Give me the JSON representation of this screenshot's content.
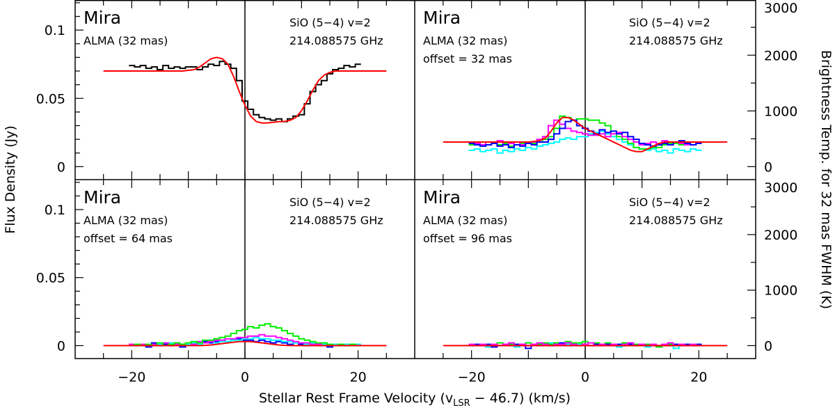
{
  "chart_data": {
    "type": "line",
    "xlabel": "Stellar Rest Frame Velocity (v",
    "xlabel_sub": "LSR",
    "xlabel_tail": " − 46.7) (km/s)",
    "ylabel": "Flux Density (Jy)",
    "ylabel_right": "Brightness Temp. for 32 mas FWHM (K)",
    "xlim": [
      -30,
      30
    ],
    "ylim": [
      -0.0095,
      0.122
    ],
    "x_ticks": [
      "-20",
      "0",
      "20"
    ],
    "x_tick_values": [
      -20,
      0,
      20
    ],
    "y_ticks": [
      "0",
      "0.05",
      "0.1"
    ],
    "y_tick_values": [
      0,
      0.05,
      0.1
    ],
    "right_ticks": [
      "0",
      "1000",
      "2000",
      "3000"
    ],
    "right_tick_values": [
      0,
      1000,
      2000,
      3000
    ],
    "jy_per_1000K": 0.0408,
    "colors": {
      "model": "#ff0000",
      "black": "#000000",
      "blue": "#0000ff",
      "green": "#00ee00",
      "magenta": "#ff00ff",
      "cyan": "#00ffff"
    },
    "obs_x_start": -20,
    "obs_x_step": 1,
    "model_x_start": -25,
    "model_x_step": 1,
    "panels": [
      {
        "star": "Mira",
        "instrument": "ALMA (32 mas)",
        "offset": "",
        "line": "SiO (5−4) v=2",
        "freq": "214.088575 GHz",
        "model": [
          0.07,
          0.07,
          0.07,
          0.07,
          0.07,
          0.07,
          0.07,
          0.07,
          0.07,
          0.07,
          0.07,
          0.07,
          0.07,
          0.07,
          0.07,
          0.0705,
          0.071,
          0.073,
          0.076,
          0.079,
          0.08,
          0.079,
          0.075,
          0.066,
          0.055,
          0.045,
          0.037,
          0.033,
          0.032,
          0.032,
          0.0325,
          0.033,
          0.033,
          0.034,
          0.036,
          0.041,
          0.048,
          0.056,
          0.063,
          0.067,
          0.069,
          0.07,
          0.07,
          0.07,
          0.07,
          0.07,
          0.07,
          0.07,
          0.07,
          0.07,
          0.07
        ],
        "series": [
          {
            "name": "black",
            "values": [
              0.074,
              0.073,
              0.074,
              0.072,
              0.073,
              0.071,
              0.074,
              0.072,
              0.073,
              0.072,
              0.073,
              0.073,
              0.071,
              0.073,
              0.075,
              0.074,
              0.077,
              0.075,
              0.072,
              0.063,
              0.048,
              0.042,
              0.038,
              0.036,
              0.035,
              0.034,
              0.035,
              0.033,
              0.035,
              0.037,
              0.038,
              0.046,
              0.055,
              0.06,
              0.063,
              0.068,
              0.071,
              0.072,
              0.074,
              0.073,
              0.075
            ]
          }
        ]
      },
      {
        "star": "Mira",
        "instrument": "ALMA (32 mas)",
        "offset": "offset = 32 mas",
        "line": "SiO (5−4) v=2",
        "freq": "214.088575 GHz",
        "model": [
          0.018,
          0.018,
          0.018,
          0.018,
          0.018,
          0.018,
          0.018,
          0.018,
          0.018,
          0.018,
          0.018,
          0.018,
          0.018,
          0.018,
          0.018,
          0.018,
          0.0185,
          0.019,
          0.021,
          0.026,
          0.032,
          0.036,
          0.036,
          0.034,
          0.031,
          0.028,
          0.026,
          0.024,
          0.022,
          0.02,
          0.018,
          0.016,
          0.014,
          0.012,
          0.011,
          0.011,
          0.013,
          0.015,
          0.017,
          0.018,
          0.018,
          0.018,
          0.018,
          0.018,
          0.018,
          0.018,
          0.018,
          0.018,
          0.018,
          0.018,
          0.018
        ],
        "series": [
          {
            "name": "cyan",
            "values": [
              0.012,
              0.013,
              0.011,
              0.012,
              0.013,
              0.01,
              0.012,
              0.011,
              0.013,
              0.012,
              0.014,
              0.013,
              0.015,
              0.016,
              0.017,
              0.018,
              0.02,
              0.021,
              0.02,
              0.022,
              0.022,
              0.024,
              0.025,
              0.026,
              0.024,
              0.022,
              0.02,
              0.018,
              0.016,
              0.014,
              0.013,
              0.012,
              0.013,
              0.011,
              0.012,
              0.01,
              0.013,
              0.012,
              0.011,
              0.013,
              0.012
            ]
          },
          {
            "name": "green",
            "values": [
              0.016,
              0.017,
              0.015,
              0.016,
              0.018,
              0.016,
              0.017,
              0.015,
              0.016,
              0.017,
              0.018,
              0.017,
              0.018,
              0.02,
              0.022,
              0.028,
              0.037,
              0.036,
              0.034,
              0.035,
              0.035,
              0.034,
              0.034,
              0.032,
              0.03,
              0.026,
              0.022,
              0.02,
              0.017,
              0.014,
              0.013,
              0.013,
              0.014,
              0.014,
              0.016,
              0.017,
              0.017,
              0.016,
              0.017,
              0.016,
              0.017
            ]
          },
          {
            "name": "magenta",
            "values": [
              0.018,
              0.017,
              0.016,
              0.018,
              0.017,
              0.019,
              0.016,
              0.017,
              0.018,
              0.016,
              0.017,
              0.018,
              0.02,
              0.022,
              0.03,
              0.034,
              0.031,
              0.028,
              0.026,
              0.025,
              0.024,
              0.023,
              0.023,
              0.024,
              0.022,
              0.024,
              0.025,
              0.022,
              0.02,
              0.018,
              0.016,
              0.017,
              0.018,
              0.017,
              0.019,
              0.016,
              0.018,
              0.017,
              0.016,
              0.018,
              0.017
            ]
          },
          {
            "name": "blue",
            "values": [
              0.017,
              0.016,
              0.015,
              0.016,
              0.017,
              0.015,
              0.016,
              0.014,
              0.016,
              0.015,
              0.017,
              0.016,
              0.018,
              0.018,
              0.02,
              0.024,
              0.028,
              0.033,
              0.034,
              0.03,
              0.028,
              0.026,
              0.024,
              0.027,
              0.025,
              0.026,
              0.024,
              0.025,
              0.022,
              0.02,
              0.017,
              0.016,
              0.015,
              0.016,
              0.017,
              0.016,
              0.018,
              0.019,
              0.017,
              0.016,
              0.017
            ]
          }
        ]
      },
      {
        "star": "Mira",
        "instrument": "ALMA (32 mas)",
        "offset": "offset = 64 mas",
        "line": "SiO (5−4) v=2",
        "freq": "214.088575 GHz",
        "model": [
          0,
          0,
          0,
          0,
          0,
          0,
          0,
          0,
          0,
          0,
          0,
          0,
          0,
          0,
          0,
          0,
          0,
          0,
          0.0002,
          0.0005,
          0.001,
          0.0015,
          0.002,
          0.0025,
          0.003,
          0.003,
          0.003,
          0.0025,
          0.002,
          0.0015,
          0.001,
          0.0005,
          0.0002,
          0,
          0,
          0,
          0,
          0,
          0,
          0,
          0,
          0,
          0,
          0,
          0,
          0,
          0,
          0,
          0,
          0,
          0
        ],
        "series": [
          {
            "name": "blue",
            "values": [
              0.001,
              0,
              0.001,
              -0.001,
              0.002,
              0,
              0.001,
              0,
              0.001,
              -0.001,
              0.001,
              0.002,
              0.001,
              0.003,
              0.002,
              0.003,
              0.004,
              0.003,
              0.004,
              0.005,
              0.004,
              0.004,
              0.003,
              0.004,
              0.003,
              0.002,
              0.003,
              0.002,
              0.001,
              0.002,
              0.001,
              0,
              0.001,
              0,
              0.001,
              -0.001,
              0.001,
              0,
              0.001,
              0,
              0.001
            ]
          },
          {
            "name": "cyan",
            "values": [
              0,
              0.001,
              0,
              0.001,
              0,
              0.001,
              0,
              0.002,
              0.001,
              0,
              0.001,
              0.002,
              0.001,
              0.002,
              0.003,
              0.002,
              0.003,
              0.003,
              0.004,
              0.004,
              0.005,
              0.005,
              0.006,
              0.005,
              0.005,
              0.004,
              0.004,
              0.003,
              0.003,
              0.002,
              0.002,
              0.001,
              0.002,
              0.001,
              0.001,
              0,
              0.001,
              0,
              0.001,
              0,
              0.001
            ]
          },
          {
            "name": "magenta",
            "values": [
              0.001,
              0,
              0.001,
              0,
              0.001,
              0,
              0.002,
              0,
              0.001,
              0.001,
              0.002,
              0.001,
              0.003,
              0.002,
              0.003,
              0.004,
              0.004,
              0.005,
              0.005,
              0.006,
              0.006,
              0.007,
              0.007,
              0.008,
              0.007,
              0.007,
              0.006,
              0.005,
              0.004,
              0.003,
              0.002,
              0.002,
              0.001,
              0.001,
              0,
              0.001,
              0,
              0.001,
              0,
              0.001,
              0
            ]
          },
          {
            "name": "green",
            "values": [
              0,
              0.001,
              0,
              0.001,
              0,
              0.002,
              0,
              0.001,
              0.002,
              0.001,
              0.002,
              0.003,
              0.002,
              0.004,
              0.004,
              0.005,
              0.006,
              0.007,
              0.009,
              0.011,
              0.012,
              0.014,
              0.013,
              0.015,
              0.016,
              0.014,
              0.013,
              0.011,
              0.009,
              0.007,
              0.005,
              0.004,
              0.003,
              0.002,
              0.002,
              0.001,
              0,
              0.001,
              0,
              0.001,
              0
            ]
          }
        ]
      },
      {
        "star": "Mira",
        "instrument": "ALMA (32 mas)",
        "offset": "offset = 96 mas",
        "line": "SiO (5−4) v=2",
        "freq": "214.088575 GHz",
        "model": [
          0,
          0,
          0,
          0,
          0,
          0,
          0,
          0,
          0,
          0,
          0,
          0,
          0,
          0,
          0,
          0,
          0,
          0,
          0,
          0,
          0,
          0,
          0,
          0,
          0,
          0,
          0,
          0,
          0,
          0,
          0,
          0,
          0,
          0,
          0,
          0,
          0,
          0,
          0,
          0,
          0,
          0,
          0,
          0,
          0,
          0,
          0,
          0,
          0,
          0,
          0
        ],
        "series": [
          {
            "name": "cyan",
            "values": [
              0,
              0.001,
              0,
              -0.001,
              0.001,
              0,
              0.001,
              0,
              -0.001,
              0.001,
              0,
              0.001,
              0,
              0.001,
              0.002,
              0.001,
              0,
              0.001,
              0,
              0.001,
              0.001,
              0,
              0.001,
              0,
              0.001,
              0,
              -0.001,
              0.001,
              0,
              0.001,
              0,
              -0.001,
              0.001,
              0,
              0.001,
              0,
              -0.002,
              0,
              0.001,
              0,
              0.001
            ]
          },
          {
            "name": "green",
            "values": [
              0.001,
              0,
              0.001,
              0,
              0.001,
              0.002,
              0,
              0.001,
              0,
              0.001,
              0.002,
              0.001,
              0.001,
              0.002,
              0.001,
              0.002,
              0.002,
              0.003,
              0.002,
              0.002,
              0.003,
              0.002,
              0.002,
              0.001,
              0.002,
              0.001,
              0.001,
              0.002,
              0,
              0.001,
              0,
              0.001,
              0,
              -0.001,
              0,
              0.001,
              0,
              0.001,
              0,
              0.001,
              0
            ]
          },
          {
            "name": "blue",
            "values": [
              0,
              0.001,
              0,
              0.001,
              -0.001,
              0,
              0.001,
              0,
              0.001,
              0,
              -0.002,
              0.001,
              0,
              0.001,
              0,
              0.001,
              0.002,
              0,
              0.001,
              0,
              0.001,
              0,
              0.001,
              0,
              0.001,
              0,
              0.001,
              0,
              0.001,
              0,
              0.001,
              0,
              0.001,
              0,
              0.001,
              0,
              0.001,
              0,
              0.001,
              0,
              0.001
            ]
          },
          {
            "name": "magenta",
            "values": [
              0.001,
              0,
              0.001,
              0,
              0.001,
              0,
              0.001,
              0.002,
              0,
              0.001,
              0,
              0.001,
              0.002,
              0.001,
              0,
              0.001,
              0.001,
              0.002,
              0.001,
              0,
              0.001,
              0.002,
              0,
              0.001,
              0,
              0.001,
              0,
              0.001,
              0.002,
              0,
              0.001,
              0,
              0.001,
              0,
              0.001,
              0.002,
              0,
              0.001,
              0,
              0.001,
              0
            ]
          }
        ]
      }
    ]
  }
}
